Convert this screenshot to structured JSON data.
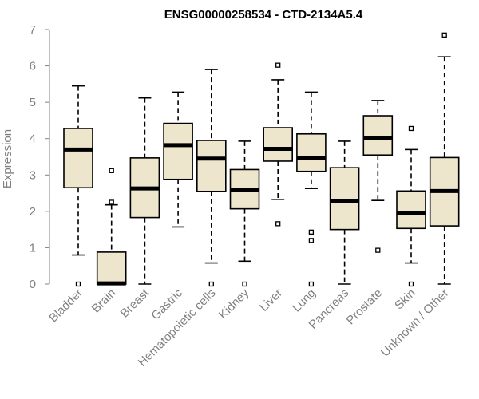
{
  "chart_data": {
    "type": "boxplot",
    "title": "ENSG00000258534 - CTD-2134A5.4",
    "ylabel": "Expression",
    "ylim": [
      0,
      7
    ],
    "yticks": [
      0,
      1,
      2,
      3,
      4,
      5,
      6,
      7
    ],
    "categories": [
      "Bladder",
      "Brain",
      "Breast",
      "Gastric",
      "Hematopoietic cells",
      "Kidney",
      "Liver",
      "Lung",
      "Pancreas",
      "Prostate",
      "Skin",
      "Unknown / Other"
    ],
    "boxes": [
      {
        "min": 0.8,
        "q1": 2.65,
        "median": 3.7,
        "q3": 4.28,
        "max": 5.45,
        "outliers": [
          0
        ]
      },
      {
        "min": 0,
        "q1": 0,
        "median": 0.02,
        "q3": 0.88,
        "max": 2.18,
        "outliers": [
          2.25,
          3.12
        ]
      },
      {
        "min": 0,
        "q1": 1.83,
        "median": 2.63,
        "q3": 3.47,
        "max": 5.12,
        "outliers": []
      },
      {
        "min": 1.57,
        "q1": 2.88,
        "median": 3.82,
        "q3": 4.42,
        "max": 5.28,
        "outliers": []
      },
      {
        "min": 0.58,
        "q1": 2.55,
        "median": 3.45,
        "q3": 3.95,
        "max": 5.9,
        "outliers": [
          0
        ]
      },
      {
        "min": 0.63,
        "q1": 2.07,
        "median": 2.6,
        "q3": 3.15,
        "max": 3.93,
        "outliers": [
          0
        ]
      },
      {
        "min": 2.33,
        "q1": 3.38,
        "median": 3.72,
        "q3": 4.3,
        "max": 5.62,
        "outliers": [
          1.66,
          6.02
        ]
      },
      {
        "min": 2.63,
        "q1": 3.1,
        "median": 3.46,
        "q3": 4.13,
        "max": 5.28,
        "outliers": [
          0,
          1.2,
          1.43
        ]
      },
      {
        "min": 0,
        "q1": 1.5,
        "median": 2.28,
        "q3": 3.2,
        "max": 3.93,
        "outliers": []
      },
      {
        "min": 2.3,
        "q1": 3.55,
        "median": 4.02,
        "q3": 4.63,
        "max": 5.05,
        "outliers": [
          0.93
        ]
      },
      {
        "min": 0.58,
        "q1": 1.53,
        "median": 1.95,
        "q3": 2.56,
        "max": 3.7,
        "outliers": [
          0,
          4.28
        ]
      },
      {
        "min": 0,
        "q1": 1.6,
        "median": 2.56,
        "q3": 3.48,
        "max": 6.25,
        "outliers": [
          6.85
        ]
      }
    ],
    "colors": {
      "box_fill": "#ede5cc",
      "box_stroke": "#000000",
      "axis": "#808080"
    },
    "grid": false,
    "legend": "none"
  }
}
